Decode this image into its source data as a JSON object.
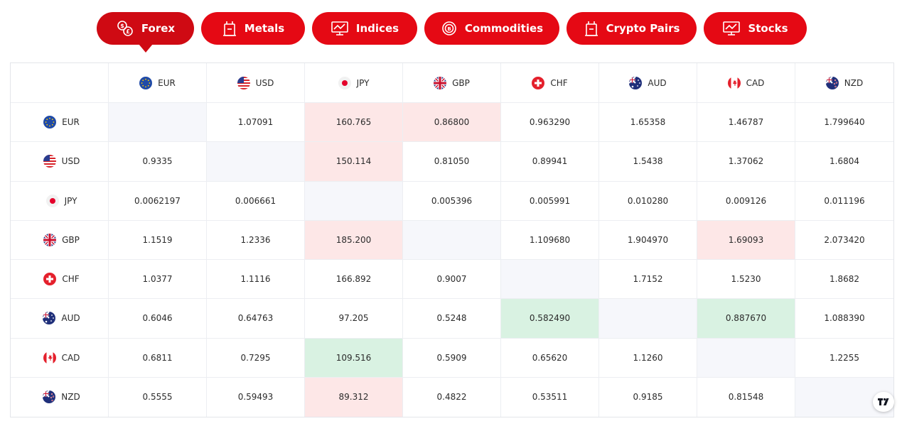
{
  "tabs": [
    {
      "label": "Forex",
      "icon": "forex-icon",
      "active": true
    },
    {
      "label": "Metals",
      "icon": "metals-icon",
      "active": false
    },
    {
      "label": "Indices",
      "icon": "indices-icon",
      "active": false
    },
    {
      "label": "Commodities",
      "icon": "commodities-icon",
      "active": false
    },
    {
      "label": "Crypto Pairs",
      "icon": "crypto-pairs-icon",
      "active": false
    },
    {
      "label": "Stocks",
      "icon": "stocks-icon",
      "active": false
    }
  ],
  "colors": {
    "brand_red": "#e50914",
    "cell_red": "#fde7e7",
    "cell_green": "#d9f2e2",
    "cell_empty": "#f6f7fb"
  },
  "currencies": [
    "EUR",
    "USD",
    "JPY",
    "GBP",
    "CHF",
    "AUD",
    "CAD",
    "NZD"
  ],
  "rows": [
    {
      "currency": "EUR",
      "cells": [
        {
          "value": "",
          "status": "empty"
        },
        {
          "value": "1.07091",
          "status": ""
        },
        {
          "value": "160.765",
          "status": "red"
        },
        {
          "value": "0.86800",
          "status": "red"
        },
        {
          "value": "0.963290",
          "status": ""
        },
        {
          "value": "1.65358",
          "status": ""
        },
        {
          "value": "1.46787",
          "status": ""
        },
        {
          "value": "1.799640",
          "status": ""
        }
      ]
    },
    {
      "currency": "USD",
      "cells": [
        {
          "value": "0.9335",
          "status": ""
        },
        {
          "value": "",
          "status": "empty"
        },
        {
          "value": "150.114",
          "status": "red"
        },
        {
          "value": "0.81050",
          "status": ""
        },
        {
          "value": "0.89941",
          "status": ""
        },
        {
          "value": "1.5438",
          "status": ""
        },
        {
          "value": "1.37062",
          "status": ""
        },
        {
          "value": "1.6804",
          "status": ""
        }
      ]
    },
    {
      "currency": "JPY",
      "cells": [
        {
          "value": "0.0062197",
          "status": ""
        },
        {
          "value": "0.006661",
          "status": ""
        },
        {
          "value": "",
          "status": "empty"
        },
        {
          "value": "0.005396",
          "status": ""
        },
        {
          "value": "0.005991",
          "status": ""
        },
        {
          "value": "0.010280",
          "status": ""
        },
        {
          "value": "0.009126",
          "status": ""
        },
        {
          "value": "0.011196",
          "status": ""
        }
      ]
    },
    {
      "currency": "GBP",
      "cells": [
        {
          "value": "1.1519",
          "status": ""
        },
        {
          "value": "1.2336",
          "status": ""
        },
        {
          "value": "185.200",
          "status": "red"
        },
        {
          "value": "",
          "status": "empty"
        },
        {
          "value": "1.109680",
          "status": ""
        },
        {
          "value": "1.904970",
          "status": ""
        },
        {
          "value": "1.69093",
          "status": "red"
        },
        {
          "value": "2.073420",
          "status": ""
        }
      ]
    },
    {
      "currency": "CHF",
      "cells": [
        {
          "value": "1.0377",
          "status": ""
        },
        {
          "value": "1.1116",
          "status": ""
        },
        {
          "value": "166.892",
          "status": ""
        },
        {
          "value": "0.9007",
          "status": ""
        },
        {
          "value": "",
          "status": "empty"
        },
        {
          "value": "1.7152",
          "status": ""
        },
        {
          "value": "1.5230",
          "status": ""
        },
        {
          "value": "1.8682",
          "status": ""
        }
      ]
    },
    {
      "currency": "AUD",
      "cells": [
        {
          "value": "0.6046",
          "status": ""
        },
        {
          "value": "0.64763",
          "status": ""
        },
        {
          "value": "97.205",
          "status": ""
        },
        {
          "value": "0.5248",
          "status": ""
        },
        {
          "value": "0.582490",
          "status": "green"
        },
        {
          "value": "",
          "status": "empty"
        },
        {
          "value": "0.887670",
          "status": "green"
        },
        {
          "value": "1.088390",
          "status": ""
        }
      ]
    },
    {
      "currency": "CAD",
      "cells": [
        {
          "value": "0.6811",
          "status": ""
        },
        {
          "value": "0.7295",
          "status": ""
        },
        {
          "value": "109.516",
          "status": "green"
        },
        {
          "value": "0.5909",
          "status": ""
        },
        {
          "value": "0.65620",
          "status": ""
        },
        {
          "value": "1.1260",
          "status": ""
        },
        {
          "value": "",
          "status": "empty"
        },
        {
          "value": "1.2255",
          "status": ""
        }
      ]
    },
    {
      "currency": "NZD",
      "cells": [
        {
          "value": "0.5555",
          "status": ""
        },
        {
          "value": "0.59493",
          "status": ""
        },
        {
          "value": "89.312",
          "status": "red"
        },
        {
          "value": "0.4822",
          "status": ""
        },
        {
          "value": "0.53511",
          "status": ""
        },
        {
          "value": "0.9185",
          "status": ""
        },
        {
          "value": "0.81548",
          "status": ""
        },
        {
          "value": "",
          "status": "empty"
        }
      ]
    }
  ],
  "footer": {
    "logo_icon": "tradingview-logo-icon"
  }
}
